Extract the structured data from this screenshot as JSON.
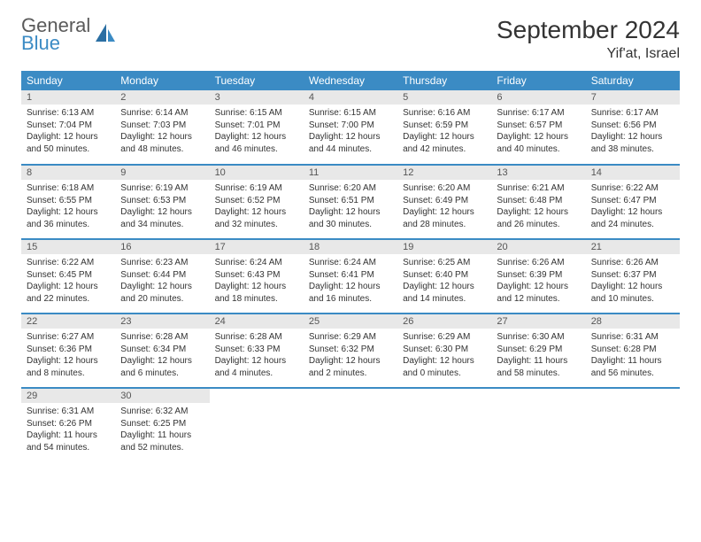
{
  "logo": {
    "text1": "General",
    "text2": "Blue"
  },
  "title": "September 2024",
  "location": "Yif'at, Israel",
  "header_color": "#3b8bc4",
  "daybar_color": "#e8e8e8",
  "days_of_week": [
    "Sunday",
    "Monday",
    "Tuesday",
    "Wednesday",
    "Thursday",
    "Friday",
    "Saturday"
  ],
  "weeks": [
    [
      {
        "n": "1",
        "sr": "6:13 AM",
        "ss": "7:04 PM",
        "dl": "12 hours and 50 minutes."
      },
      {
        "n": "2",
        "sr": "6:14 AM",
        "ss": "7:03 PM",
        "dl": "12 hours and 48 minutes."
      },
      {
        "n": "3",
        "sr": "6:15 AM",
        "ss": "7:01 PM",
        "dl": "12 hours and 46 minutes."
      },
      {
        "n": "4",
        "sr": "6:15 AM",
        "ss": "7:00 PM",
        "dl": "12 hours and 44 minutes."
      },
      {
        "n": "5",
        "sr": "6:16 AM",
        "ss": "6:59 PM",
        "dl": "12 hours and 42 minutes."
      },
      {
        "n": "6",
        "sr": "6:17 AM",
        "ss": "6:57 PM",
        "dl": "12 hours and 40 minutes."
      },
      {
        "n": "7",
        "sr": "6:17 AM",
        "ss": "6:56 PM",
        "dl": "12 hours and 38 minutes."
      }
    ],
    [
      {
        "n": "8",
        "sr": "6:18 AM",
        "ss": "6:55 PM",
        "dl": "12 hours and 36 minutes."
      },
      {
        "n": "9",
        "sr": "6:19 AM",
        "ss": "6:53 PM",
        "dl": "12 hours and 34 minutes."
      },
      {
        "n": "10",
        "sr": "6:19 AM",
        "ss": "6:52 PM",
        "dl": "12 hours and 32 minutes."
      },
      {
        "n": "11",
        "sr": "6:20 AM",
        "ss": "6:51 PM",
        "dl": "12 hours and 30 minutes."
      },
      {
        "n": "12",
        "sr": "6:20 AM",
        "ss": "6:49 PM",
        "dl": "12 hours and 28 minutes."
      },
      {
        "n": "13",
        "sr": "6:21 AM",
        "ss": "6:48 PM",
        "dl": "12 hours and 26 minutes."
      },
      {
        "n": "14",
        "sr": "6:22 AM",
        "ss": "6:47 PM",
        "dl": "12 hours and 24 minutes."
      }
    ],
    [
      {
        "n": "15",
        "sr": "6:22 AM",
        "ss": "6:45 PM",
        "dl": "12 hours and 22 minutes."
      },
      {
        "n": "16",
        "sr": "6:23 AM",
        "ss": "6:44 PM",
        "dl": "12 hours and 20 minutes."
      },
      {
        "n": "17",
        "sr": "6:24 AM",
        "ss": "6:43 PM",
        "dl": "12 hours and 18 minutes."
      },
      {
        "n": "18",
        "sr": "6:24 AM",
        "ss": "6:41 PM",
        "dl": "12 hours and 16 minutes."
      },
      {
        "n": "19",
        "sr": "6:25 AM",
        "ss": "6:40 PM",
        "dl": "12 hours and 14 minutes."
      },
      {
        "n": "20",
        "sr": "6:26 AM",
        "ss": "6:39 PM",
        "dl": "12 hours and 12 minutes."
      },
      {
        "n": "21",
        "sr": "6:26 AM",
        "ss": "6:37 PM",
        "dl": "12 hours and 10 minutes."
      }
    ],
    [
      {
        "n": "22",
        "sr": "6:27 AM",
        "ss": "6:36 PM",
        "dl": "12 hours and 8 minutes."
      },
      {
        "n": "23",
        "sr": "6:28 AM",
        "ss": "6:34 PM",
        "dl": "12 hours and 6 minutes."
      },
      {
        "n": "24",
        "sr": "6:28 AM",
        "ss": "6:33 PM",
        "dl": "12 hours and 4 minutes."
      },
      {
        "n": "25",
        "sr": "6:29 AM",
        "ss": "6:32 PM",
        "dl": "12 hours and 2 minutes."
      },
      {
        "n": "26",
        "sr": "6:29 AM",
        "ss": "6:30 PM",
        "dl": "12 hours and 0 minutes."
      },
      {
        "n": "27",
        "sr": "6:30 AM",
        "ss": "6:29 PM",
        "dl": "11 hours and 58 minutes."
      },
      {
        "n": "28",
        "sr": "6:31 AM",
        "ss": "6:28 PM",
        "dl": "11 hours and 56 minutes."
      }
    ],
    [
      {
        "n": "29",
        "sr": "6:31 AM",
        "ss": "6:26 PM",
        "dl": "11 hours and 54 minutes."
      },
      {
        "n": "30",
        "sr": "6:32 AM",
        "ss": "6:25 PM",
        "dl": "11 hours and 52 minutes."
      },
      null,
      null,
      null,
      null,
      null
    ]
  ],
  "labels": {
    "sunrise": "Sunrise:",
    "sunset": "Sunset:",
    "daylight": "Daylight:"
  }
}
